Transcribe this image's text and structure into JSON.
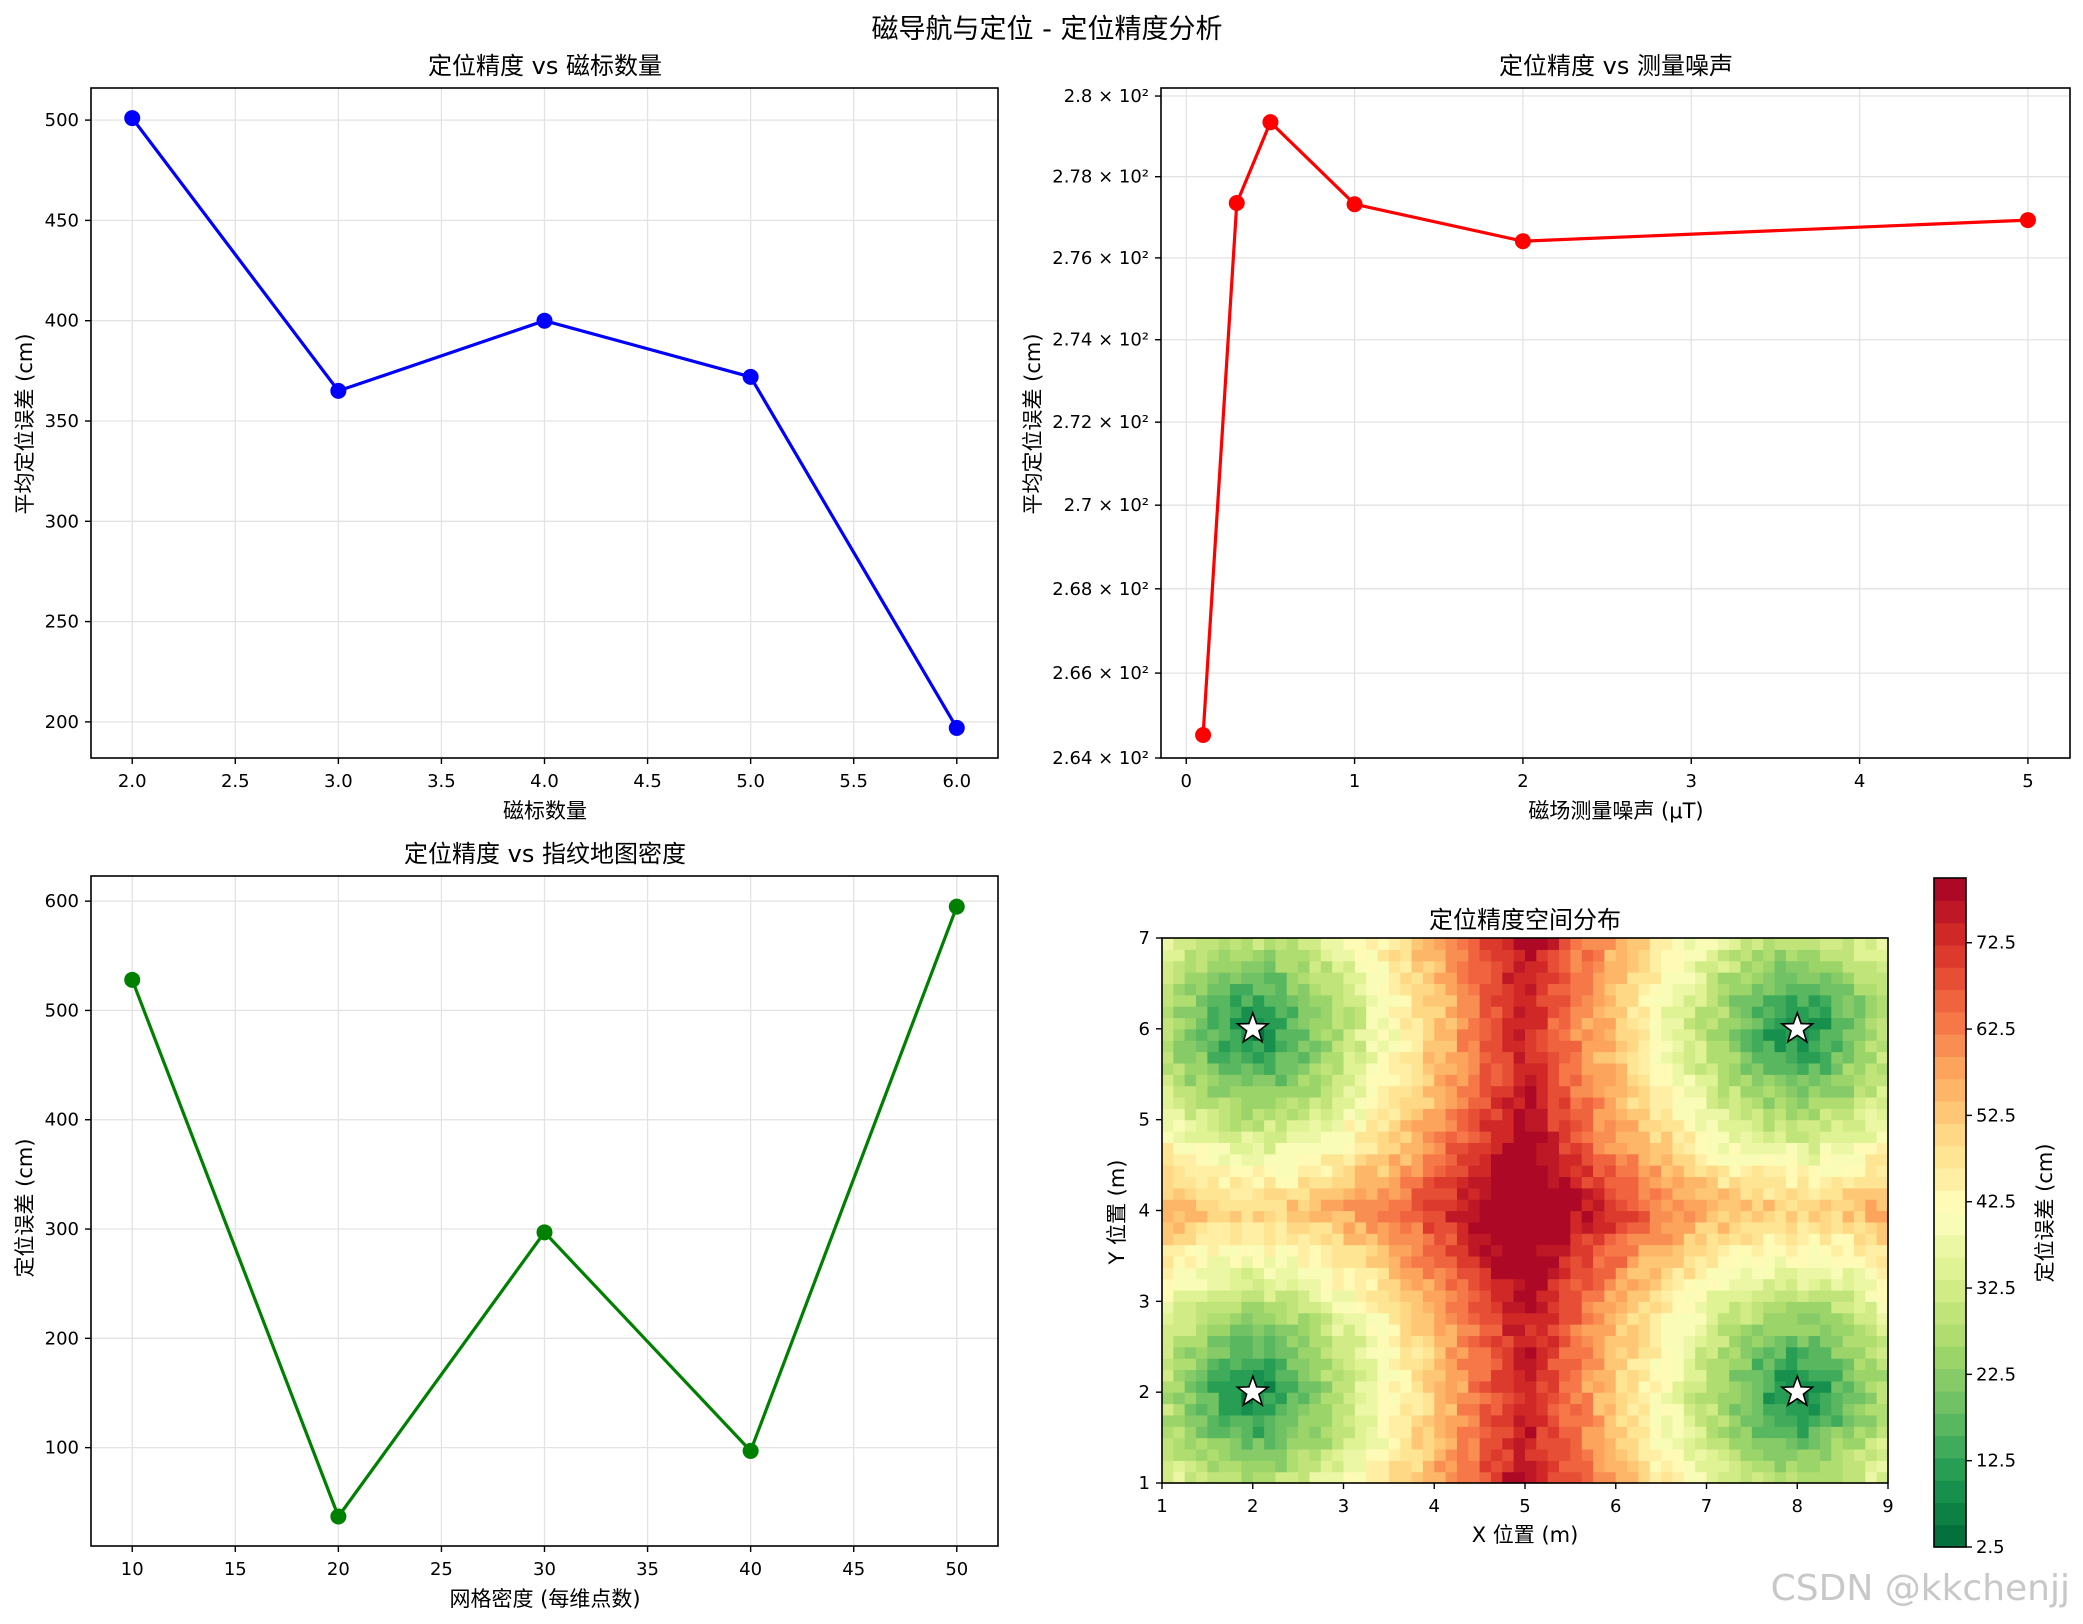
{
  "suptitle": "磁导航与定位 - 定位精度分析",
  "watermark": "CSDN @kkchenjj",
  "colors": {
    "blue": "#0000ff",
    "red": "#ff0000",
    "green": "#008000",
    "grid": "#e3e3e3"
  },
  "chart_data": [
    {
      "type": "line",
      "title": "定位精度 vs 磁标数量",
      "xlabel": "磁标数量",
      "ylabel": "平均定位误差 (cm)",
      "color": "#0000ff",
      "x": [
        2,
        3,
        4,
        5,
        6
      ],
      "y": [
        501,
        365,
        400,
        372,
        197
      ],
      "xlim": [
        1.8,
        6.2
      ],
      "ylim": [
        182,
        516
      ],
      "xticks": [
        2.0,
        2.5,
        3.0,
        3.5,
        4.0,
        4.5,
        5.0,
        5.5,
        6.0
      ],
      "xtick_labels": [
        "2.0",
        "2.5",
        "3.0",
        "3.5",
        "4.0",
        "4.5",
        "5.0",
        "5.5",
        "6.0"
      ],
      "yticks": [
        200,
        250,
        300,
        350,
        400,
        450,
        500
      ],
      "ytick_labels": [
        "200",
        "250",
        "300",
        "350",
        "400",
        "450",
        "500"
      ],
      "grid": true
    },
    {
      "type": "line",
      "title": "定位精度 vs 测量噪声",
      "xlabel": "磁场测量噪声 (μT)",
      "ylabel": "平均定位误差 (cm)",
      "yscale": "log",
      "color": "#ff0000",
      "x": [
        0.1,
        0.3,
        0.5,
        1,
        2,
        5
      ],
      "y": [
        264.54,
        277.35,
        279.35,
        277.32,
        276.41,
        276.93
      ],
      "xlim": [
        -0.15,
        5.25
      ],
      "ylim": [
        264.0,
        280.2
      ],
      "xticks": [
        0,
        1,
        2,
        3,
        4,
        5
      ],
      "xtick_labels": [
        "0",
        "1",
        "2",
        "3",
        "4",
        "5"
      ],
      "yticks": [
        264,
        266,
        268,
        270,
        272,
        274,
        276,
        278,
        280
      ],
      "ytick_labels": [
        "2.64 × 10²",
        "2.66 × 10²",
        "2.68 × 10²",
        "2.7 × 10²",
        "2.72 × 10²",
        "2.74 × 10²",
        "2.76 × 10²",
        "2.78 × 10²",
        "2.8 × 10²"
      ],
      "grid": true
    },
    {
      "type": "line",
      "title": "定位精度 vs 指纹地图密度",
      "xlabel": "网格密度 (每维点数)",
      "ylabel": "定位误差 (cm)",
      "color": "#008000",
      "x": [
        10,
        20,
        30,
        40,
        50
      ],
      "y": [
        528,
        37,
        297,
        97,
        595
      ],
      "xlim": [
        8,
        52
      ],
      "ylim": [
        10,
        623
      ],
      "xticks": [
        10,
        15,
        20,
        25,
        30,
        35,
        40,
        45,
        50
      ],
      "xtick_labels": [
        "10",
        "15",
        "20",
        "25",
        "30",
        "35",
        "40",
        "45",
        "50"
      ],
      "yticks": [
        100,
        200,
        300,
        400,
        500,
        600
      ],
      "ytick_labels": [
        "100",
        "200",
        "300",
        "400",
        "500",
        "600"
      ],
      "grid": true
    },
    {
      "type": "heatmap",
      "title": "定位精度空间分布",
      "xlabel": "X 位置 (m)",
      "ylabel": "Y 位置 (m)",
      "colormap": "RdYlGn_r",
      "xlim": [
        1,
        9
      ],
      "ylim": [
        1,
        7
      ],
      "xticks": [
        1,
        2,
        3,
        4,
        5,
        6,
        7,
        8,
        9
      ],
      "xtick_labels": [
        "1",
        "2",
        "3",
        "4",
        "5",
        "6",
        "7",
        "8",
        "9"
      ],
      "yticks": [
        1,
        2,
        3,
        4,
        5,
        6,
        7
      ],
      "ytick_labels": [
        "1",
        "2",
        "3",
        "4",
        "5",
        "6",
        "7"
      ],
      "beacons": [
        {
          "x": 2,
          "y": 6
        },
        {
          "x": 8,
          "y": 6
        },
        {
          "x": 2,
          "y": 2
        },
        {
          "x": 8,
          "y": 2
        }
      ],
      "colorbar": {
        "label": "定位误差 (cm)",
        "range": [
          2.5,
          80
        ],
        "levels": 30,
        "ticks": [
          2.5,
          12.5,
          22.5,
          32.5,
          42.5,
          52.5,
          62.5,
          72.5
        ],
        "tick_labels": [
          "2.5",
          "12.5",
          "22.5",
          "32.5",
          "42.5",
          "52.5",
          "62.5",
          "72.5"
        ]
      }
    }
  ]
}
